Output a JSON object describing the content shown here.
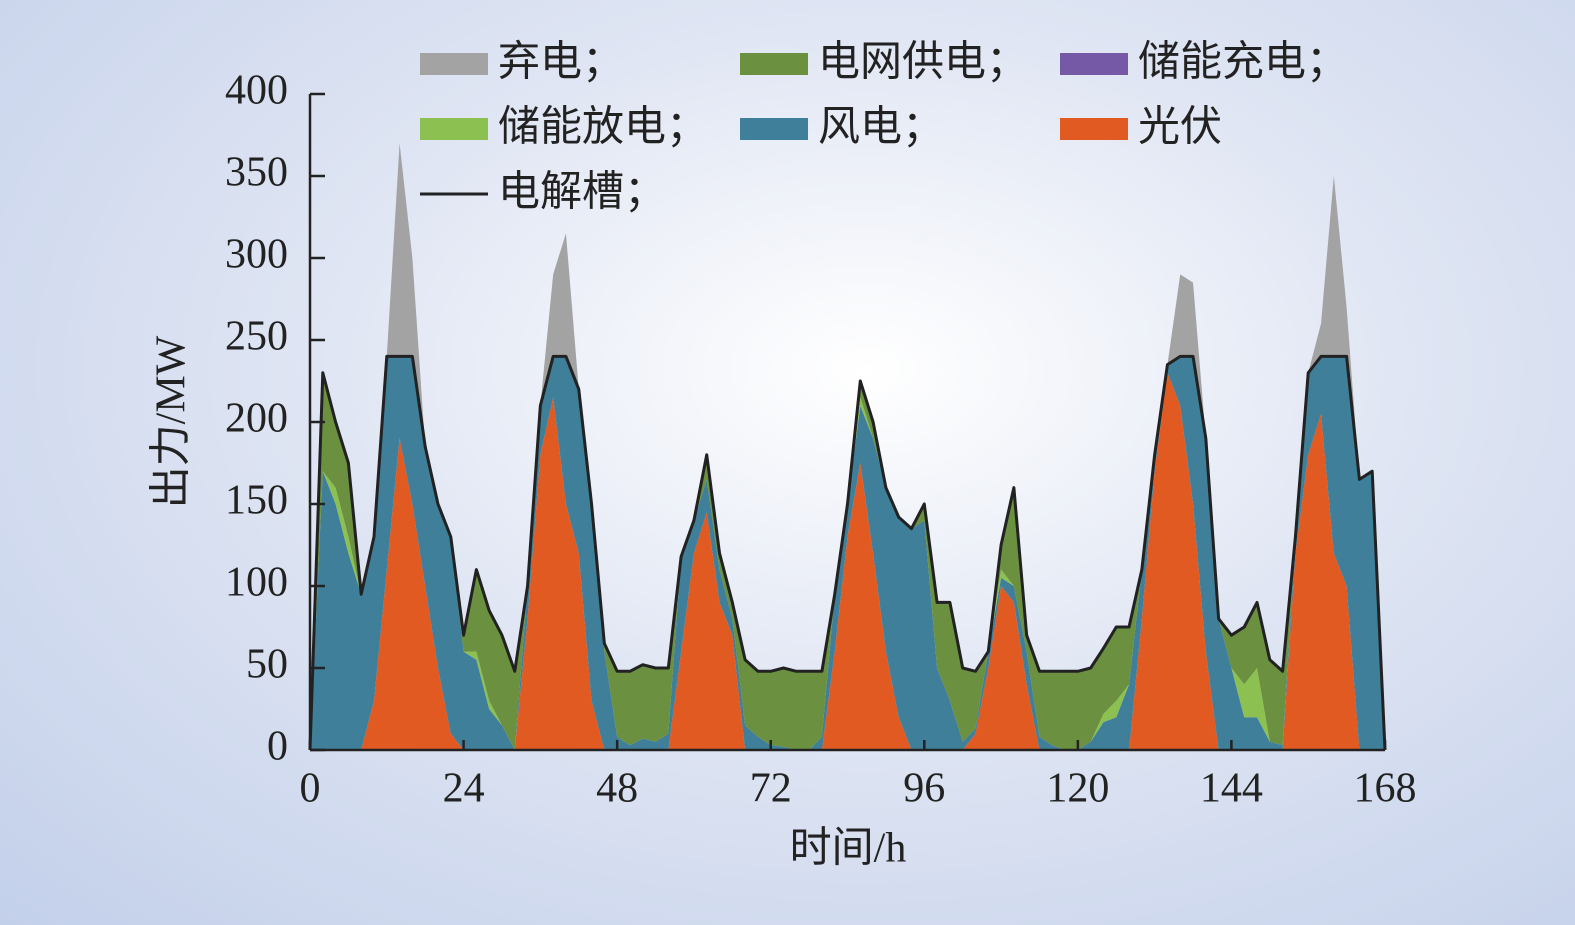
{
  "chart_data": {
    "type": "stacked_area",
    "xlabel": "时间/h",
    "ylabel": "出力/MW",
    "x": [
      0,
      2,
      4,
      6,
      8,
      10,
      12,
      14,
      16,
      18,
      20,
      22,
      24,
      26,
      28,
      30,
      32,
      34,
      36,
      38,
      40,
      42,
      44,
      46,
      48,
      50,
      52,
      54,
      56,
      58,
      60,
      62,
      64,
      66,
      68,
      70,
      72,
      74,
      76,
      78,
      80,
      82,
      84,
      86,
      88,
      90,
      92,
      94,
      96,
      98,
      100,
      102,
      104,
      106,
      108,
      110,
      112,
      114,
      116,
      118,
      120,
      122,
      124,
      126,
      128,
      130,
      132,
      134,
      136,
      138,
      140,
      142,
      144,
      146,
      148,
      150,
      152,
      154,
      156,
      158,
      160,
      162,
      164,
      166,
      168
    ],
    "xlim": [
      0,
      168
    ],
    "xticks": [
      0,
      24,
      48,
      72,
      96,
      120,
      144,
      168
    ],
    "ylim": [
      0,
      400
    ],
    "yticks": [
      0,
      50,
      100,
      150,
      200,
      250,
      300,
      350,
      400
    ],
    "series": [
      {
        "name": "弃电；",
        "color": "#a3a3a3",
        "values": [
          0,
          0,
          0,
          0,
          0,
          0,
          0,
          130,
          60,
          0,
          0,
          0,
          0,
          0,
          0,
          0,
          0,
          0,
          0,
          50,
          75,
          0,
          0,
          0,
          0,
          0,
          0,
          0,
          0,
          0,
          0,
          0,
          0,
          0,
          0,
          0,
          0,
          0,
          0,
          0,
          0,
          0,
          0,
          0,
          0,
          0,
          0,
          0,
          0,
          0,
          0,
          0,
          0,
          0,
          0,
          0,
          0,
          0,
          0,
          0,
          0,
          0,
          0,
          0,
          0,
          0,
          0,
          0,
          50,
          45,
          0,
          0,
          0,
          0,
          0,
          0,
          0,
          0,
          0,
          20,
          110,
          30,
          0,
          0,
          0
        ]
      },
      {
        "name": "电网供电；",
        "color": "#6b9140",
        "values": [
          0,
          60,
          40,
          45,
          0,
          0,
          0,
          0,
          0,
          0,
          0,
          0,
          10,
          50,
          55,
          55,
          48,
          0,
          0,
          0,
          0,
          0,
          0,
          5,
          40,
          45,
          45,
          45,
          40,
          0,
          0,
          15,
          10,
          10,
          40,
          40,
          45,
          48,
          48,
          48,
          40,
          0,
          0,
          10,
          10,
          0,
          0,
          0,
          10,
          40,
          60,
          45,
          35,
          0,
          15,
          60,
          10,
          40,
          45,
          48,
          48,
          45,
          40,
          45,
          35,
          0,
          0,
          0,
          0,
          0,
          0,
          0,
          20,
          35,
          40,
          50,
          45,
          0,
          0,
          0,
          0,
          0,
          0,
          0,
          0
        ]
      },
      {
        "name": "储能充电；",
        "color": "#7559a6",
        "values": [
          0,
          0,
          0,
          0,
          0,
          0,
          0,
          0,
          0,
          0,
          0,
          0,
          0,
          0,
          0,
          0,
          0,
          0,
          0,
          0,
          0,
          0,
          0,
          0,
          0,
          0,
          0,
          0,
          0,
          0,
          0,
          0,
          0,
          0,
          0,
          0,
          0,
          0,
          0,
          0,
          0,
          0,
          0,
          0,
          0,
          0,
          0,
          0,
          0,
          0,
          0,
          0,
          0,
          0,
          0,
          0,
          0,
          0,
          0,
          0,
          0,
          0,
          0,
          0,
          0,
          0,
          0,
          0,
          0,
          0,
          0,
          0,
          0,
          0,
          0,
          0,
          0,
          0,
          0,
          0,
          0,
          0,
          0,
          0,
          0
        ]
      },
      {
        "name": "储能放电；",
        "color": "#8cc152",
        "values": [
          0,
          0,
          10,
          10,
          0,
          0,
          0,
          0,
          0,
          0,
          0,
          0,
          0,
          5,
          5,
          0,
          0,
          0,
          0,
          0,
          0,
          0,
          0,
          0,
          0,
          0,
          0,
          0,
          0,
          0,
          0,
          0,
          0,
          0,
          0,
          0,
          0,
          0,
          0,
          0,
          0,
          0,
          0,
          5,
          0,
          0,
          0,
          0,
          0,
          0,
          0,
          0,
          0,
          0,
          5,
          0,
          0,
          0,
          0,
          0,
          0,
          0,
          5,
          10,
          0,
          0,
          0,
          0,
          0,
          0,
          0,
          0,
          0,
          20,
          30,
          0,
          0,
          0,
          0,
          0,
          0,
          0,
          0,
          0,
          0
        ]
      },
      {
        "name": "风电；",
        "color": "#3f7f99",
        "values": [
          0,
          170,
          150,
          120,
          95,
          100,
          130,
          50,
          90,
          85,
          100,
          120,
          60,
          55,
          25,
          15,
          0,
          20,
          30,
          25,
          90,
          100,
          120,
          60,
          8,
          3,
          7,
          5,
          10,
          58,
          20,
          20,
          20,
          10,
          15,
          8,
          3,
          2,
          0,
          0,
          8,
          35,
          20,
          35,
          70,
          100,
          122,
          135,
          140,
          50,
          30,
          5,
          3,
          10,
          5,
          10,
          20,
          8,
          3,
          0,
          0,
          5,
          17,
          20,
          40,
          30,
          10,
          5,
          30,
          90,
          130,
          80,
          50,
          20,
          20,
          5,
          3,
          10,
          50,
          35,
          120,
          140,
          165,
          170,
          0
        ]
      },
      {
        "name": "光伏",
        "color": "#e05a22",
        "values": [
          0,
          0,
          0,
          0,
          0,
          30,
          110,
          190,
          150,
          100,
          50,
          10,
          0,
          0,
          0,
          0,
          0,
          80,
          180,
          215,
          150,
          120,
          30,
          0,
          0,
          0,
          0,
          0,
          0,
          60,
          120,
          145,
          90,
          70,
          0,
          0,
          0,
          0,
          0,
          0,
          0,
          60,
          130,
          175,
          120,
          60,
          20,
          0,
          0,
          0,
          0,
          0,
          10,
          50,
          100,
          90,
          40,
          0,
          0,
          0,
          0,
          0,
          0,
          0,
          0,
          80,
          170,
          230,
          210,
          150,
          60,
          0,
          0,
          0,
          0,
          0,
          0,
          120,
          180,
          205,
          120,
          100,
          0,
          0,
          0
        ]
      },
      {
        "name": "电解槽；",
        "color": "#222222",
        "type": "line",
        "values": [
          0,
          230,
          200,
          175,
          95,
          130,
          240,
          240,
          240,
          185,
          150,
          130,
          70,
          110,
          85,
          70,
          48,
          100,
          210,
          240,
          240,
          220,
          150,
          65,
          48,
          48,
          52,
          50,
          50,
          118,
          140,
          180,
          120,
          90,
          55,
          48,
          48,
          50,
          48,
          48,
          48,
          95,
          150,
          225,
          200,
          160,
          142,
          135,
          150,
          90,
          90,
          50,
          48,
          60,
          125,
          160,
          70,
          48,
          48,
          48,
          48,
          50,
          62,
          75,
          75,
          110,
          180,
          235,
          240,
          240,
          190,
          80,
          70,
          75,
          90,
          55,
          48,
          130,
          230,
          240,
          240,
          240,
          165,
          170,
          0
        ]
      }
    ]
  }
}
